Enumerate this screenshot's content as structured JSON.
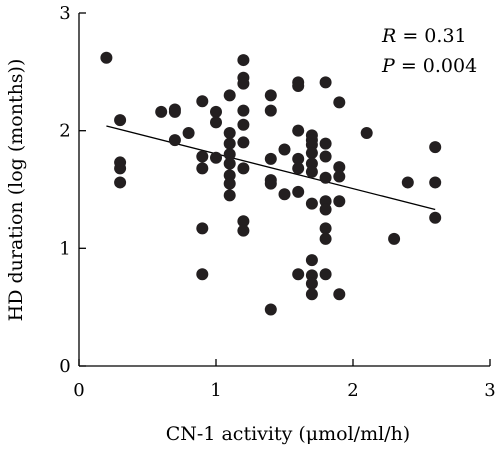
{
  "chart_data": {
    "type": "scatter",
    "title": "",
    "xlabel": "CN-1 activity (μmol/ml/h)",
    "ylabel": "HD duration (log (months))",
    "xlim": [
      0,
      3
    ],
    "ylim": [
      0,
      3
    ],
    "x_ticks": [
      "0",
      "1",
      "2",
      "3"
    ],
    "y_ticks": [
      "0",
      "1",
      "2",
      "3"
    ],
    "grid": false,
    "annotations": [
      {
        "label": "R",
        "text": " = 0.31"
      },
      {
        "label": "P",
        "text": " = 0.004"
      }
    ],
    "trendline": {
      "x": [
        0.2,
        2.6
      ],
      "y": [
        2.04,
        1.33
      ]
    },
    "point_color": "#231f20",
    "points": [
      {
        "x": 0.2,
        "y": 2.62
      },
      {
        "x": 0.3,
        "y": 2.09
      },
      {
        "x": 0.3,
        "y": 1.73
      },
      {
        "x": 0.3,
        "y": 1.68
      },
      {
        "x": 0.3,
        "y": 1.56
      },
      {
        "x": 0.6,
        "y": 2.16
      },
      {
        "x": 0.7,
        "y": 2.18
      },
      {
        "x": 0.7,
        "y": 2.16
      },
      {
        "x": 0.7,
        "y": 1.92
      },
      {
        "x": 0.8,
        "y": 1.98
      },
      {
        "x": 0.9,
        "y": 2.25
      },
      {
        "x": 0.9,
        "y": 1.78
      },
      {
        "x": 0.9,
        "y": 1.68
      },
      {
        "x": 0.9,
        "y": 1.17
      },
      {
        "x": 0.9,
        "y": 0.78
      },
      {
        "x": 1.0,
        "y": 2.16
      },
      {
        "x": 1.0,
        "y": 2.07
      },
      {
        "x": 1.0,
        "y": 1.77
      },
      {
        "x": 1.1,
        "y": 2.3
      },
      {
        "x": 1.1,
        "y": 1.98
      },
      {
        "x": 1.1,
        "y": 1.89
      },
      {
        "x": 1.1,
        "y": 1.8
      },
      {
        "x": 1.1,
        "y": 1.72
      },
      {
        "x": 1.1,
        "y": 1.62
      },
      {
        "x": 1.1,
        "y": 1.55
      },
      {
        "x": 1.1,
        "y": 1.45
      },
      {
        "x": 1.2,
        "y": 2.6
      },
      {
        "x": 1.2,
        "y": 2.45
      },
      {
        "x": 1.2,
        "y": 2.4
      },
      {
        "x": 1.2,
        "y": 2.17
      },
      {
        "x": 1.2,
        "y": 2.05
      },
      {
        "x": 1.2,
        "y": 1.9
      },
      {
        "x": 1.2,
        "y": 1.68
      },
      {
        "x": 1.2,
        "y": 1.23
      },
      {
        "x": 1.2,
        "y": 1.15
      },
      {
        "x": 1.4,
        "y": 2.3
      },
      {
        "x": 1.4,
        "y": 2.17
      },
      {
        "x": 1.4,
        "y": 1.76
      },
      {
        "x": 1.4,
        "y": 1.58
      },
      {
        "x": 1.4,
        "y": 1.55
      },
      {
        "x": 1.4,
        "y": 0.48
      },
      {
        "x": 1.5,
        "y": 1.84
      },
      {
        "x": 1.5,
        "y": 1.46
      },
      {
        "x": 1.6,
        "y": 2.41
      },
      {
        "x": 1.6,
        "y": 2.38
      },
      {
        "x": 1.6,
        "y": 2.0
      },
      {
        "x": 1.6,
        "y": 1.76
      },
      {
        "x": 1.6,
        "y": 1.68
      },
      {
        "x": 1.6,
        "y": 1.48
      },
      {
        "x": 1.6,
        "y": 0.78
      },
      {
        "x": 1.7,
        "y": 1.96
      },
      {
        "x": 1.7,
        "y": 1.92
      },
      {
        "x": 1.7,
        "y": 1.88
      },
      {
        "x": 1.7,
        "y": 1.81
      },
      {
        "x": 1.7,
        "y": 1.72
      },
      {
        "x": 1.7,
        "y": 1.65
      },
      {
        "x": 1.7,
        "y": 1.38
      },
      {
        "x": 1.7,
        "y": 0.9
      },
      {
        "x": 1.7,
        "y": 0.77
      },
      {
        "x": 1.7,
        "y": 0.7
      },
      {
        "x": 1.7,
        "y": 0.61
      },
      {
        "x": 1.8,
        "y": 2.41
      },
      {
        "x": 1.8,
        "y": 1.89
      },
      {
        "x": 1.8,
        "y": 1.78
      },
      {
        "x": 1.8,
        "y": 1.6
      },
      {
        "x": 1.8,
        "y": 1.4
      },
      {
        "x": 1.8,
        "y": 1.33
      },
      {
        "x": 1.8,
        "y": 1.17
      },
      {
        "x": 1.8,
        "y": 1.08
      },
      {
        "x": 1.8,
        "y": 0.78
      },
      {
        "x": 1.9,
        "y": 2.24
      },
      {
        "x": 1.9,
        "y": 1.69
      },
      {
        "x": 1.9,
        "y": 1.61
      },
      {
        "x": 1.9,
        "y": 1.4
      },
      {
        "x": 1.9,
        "y": 0.61
      },
      {
        "x": 2.1,
        "y": 1.98
      },
      {
        "x": 2.3,
        "y": 1.08
      },
      {
        "x": 2.4,
        "y": 1.56
      },
      {
        "x": 2.6,
        "y": 1.86
      },
      {
        "x": 2.6,
        "y": 1.56
      },
      {
        "x": 2.6,
        "y": 1.26
      }
    ]
  }
}
